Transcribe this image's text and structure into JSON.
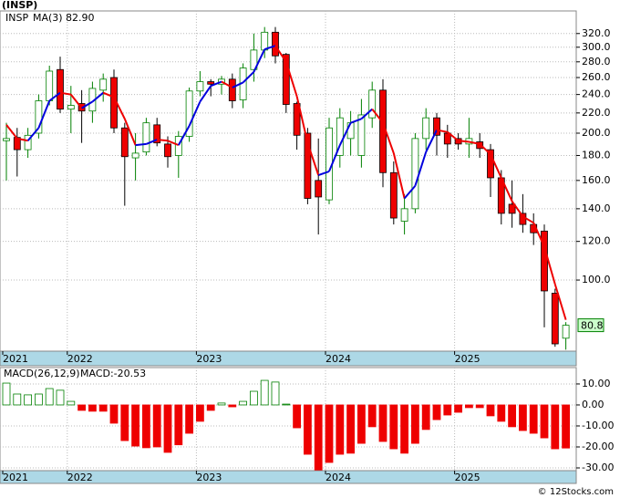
{
  "chart_data": [
    {
      "type": "candlestick",
      "title": "(INSP)",
      "categories": [
        "2021",
        null,
        null,
        null,
        null,
        null,
        "2022",
        null,
        null,
        null,
        null,
        null,
        null,
        null,
        null,
        null,
        null,
        null,
        "2023",
        null,
        null,
        null,
        null,
        null,
        null,
        null,
        null,
        null,
        null,
        null,
        "2024",
        null,
        null,
        null,
        null,
        null,
        null,
        null,
        null,
        null,
        null,
        null,
        "2025",
        null,
        null,
        null,
        null,
        null,
        null,
        null,
        null,
        null,
        null
      ],
      "series": [
        {
          "name": "INSP",
          "up_color": "#008000",
          "down_color": "#ee0000",
          "last_label": "80.8",
          "open": [
            193,
            196,
            185,
            200,
            233,
            270,
            224,
            230,
            222,
            245,
            260,
            205,
            178,
            183,
            208,
            190,
            180,
            197,
            244,
            255,
            252,
            258,
            234,
            270,
            296,
            322,
            290,
            230,
            200,
            160,
            146,
            180,
            195,
            180,
            215,
            245,
            166,
            132,
            140,
            195,
            215,
            200,
            195,
            190,
            192,
            185,
            162,
            143,
            137,
            130,
            126,
            94,
            76
          ],
          "high": [
            210,
            205,
            205,
            240,
            275,
            287,
            250,
            245,
            255,
            265,
            270,
            210,
            200,
            215,
            215,
            197,
            202,
            248,
            268,
            258,
            262,
            265,
            278,
            320,
            330,
            330,
            292,
            232,
            205,
            195,
            215,
            225,
            222,
            235,
            255,
            258,
            175,
            150,
            200,
            225,
            220,
            208,
            200,
            215,
            200,
            190,
            168,
            160,
            150,
            137,
            130,
            96,
            82
          ],
          "low": [
            160,
            163,
            178,
            195,
            228,
            220,
            200,
            191,
            210,
            232,
            200,
            142,
            160,
            180,
            188,
            170,
            162,
            192,
            238,
            238,
            240,
            225,
            225,
            255,
            285,
            278,
            220,
            185,
            143,
            124,
            143,
            170,
            180,
            170,
            205,
            155,
            130,
            124,
            137,
            185,
            180,
            178,
            185,
            178,
            178,
            148,
            130,
            128,
            125,
            118,
            80,
            73,
            72
          ],
          "close": [
            195,
            185,
            198,
            233,
            268,
            224,
            228,
            222,
            247,
            258,
            205,
            179,
            182,
            210,
            191,
            179,
            197,
            244,
            255,
            252,
            258,
            233,
            272,
            296,
            322,
            288,
            229,
            198,
            147,
            148,
            205,
            215,
            210,
            218,
            245,
            166,
            134,
            140,
            195,
            215,
            198,
            190,
            190,
            195,
            186,
            162,
            137,
            137,
            130,
            125,
            95,
            74,
            80.8
          ]
        },
        {
          "name": "MA(3)",
          "legend_value": "82.90",
          "up_color": "#0000dd",
          "down_color": "#ee0000",
          "values": [
            208,
            195,
            193,
            205,
            233,
            242,
            240,
            225,
            232,
            242,
            237,
            214,
            189,
            190,
            194,
            193,
            189,
            207,
            232,
            250,
            255,
            248,
            254,
            267,
            297,
            302,
            280,
            238,
            191,
            164,
            167,
            189,
            210,
            214,
            224,
            210,
            182,
            147,
            156,
            183,
            203,
            201,
            193,
            192,
            190,
            181,
            162,
            145,
            135,
            131,
            117,
            98,
            82.9
          ]
        }
      ],
      "ylim": [
        71.5,
        356
      ],
      "log_scale": true,
      "grid": true,
      "yticks": [
        {
          "value": 100,
          "label": "100.0"
        },
        {
          "value": 120,
          "label": "120.0"
        },
        {
          "value": 140,
          "label": "140.0"
        },
        {
          "value": 160,
          "label": "160.0"
        },
        {
          "value": 180,
          "label": "180.0"
        },
        {
          "value": 200,
          "label": "200.0"
        },
        {
          "value": 220,
          "label": "220.0"
        },
        {
          "value": 240,
          "label": "240.0"
        },
        {
          "value": 260,
          "label": "260.0"
        },
        {
          "value": 280,
          "label": "280.0"
        },
        {
          "value": 300,
          "label": "300.0"
        },
        {
          "value": 320,
          "label": "320.0"
        }
      ]
    },
    {
      "type": "bar",
      "title": "MACD(26,12,9)",
      "categories": [
        "2021",
        null,
        null,
        null,
        null,
        null,
        "2022",
        null,
        null,
        null,
        null,
        null,
        null,
        null,
        null,
        null,
        null,
        null,
        "2023",
        null,
        null,
        null,
        null,
        null,
        null,
        null,
        null,
        null,
        null,
        null,
        "2024",
        null,
        null,
        null,
        null,
        null,
        null,
        null,
        null,
        null,
        null,
        null,
        "2025",
        null,
        null,
        null,
        null,
        null,
        null,
        null,
        null,
        null,
        null
      ],
      "series": [
        {
          "name": "MACD:-20.53",
          "up_color": "#008000",
          "down_color": "#ee0000",
          "values": [
            10.4,
            5.2,
            4.8,
            5.2,
            7.8,
            7,
            1.7,
            -2.6,
            -3,
            -3,
            -8.7,
            -17,
            -19.6,
            -20.4,
            -20,
            -22.6,
            -19,
            -13.5,
            -7.8,
            -2.6,
            0.9,
            -0.9,
            1.7,
            6.5,
            11.7,
            10.9,
            0.4,
            -10.9,
            -23.5,
            -31,
            -27.4,
            -23.5,
            -23,
            -18.3,
            -10.4,
            -17.4,
            -20.9,
            -23,
            -18.3,
            -11.7,
            -7,
            -4.8,
            -3.5,
            -1.3,
            -1.3,
            -5.2,
            -7.8,
            -10.4,
            -12.2,
            -13.5,
            -15.7,
            -20.9,
            -20.53
          ]
        }
      ],
      "ylim": [
        -31.3,
        17.8
      ],
      "grid": true,
      "yticks": [
        {
          "value": 10,
          "label": "10.00"
        },
        {
          "value": 0,
          "label": "0.00"
        },
        {
          "value": -10,
          "label": "-10.00"
        },
        {
          "value": -20,
          "label": "-20.00"
        },
        {
          "value": -30,
          "label": "-30.00"
        }
      ]
    }
  ],
  "copyright": "© 12Stocks.com"
}
